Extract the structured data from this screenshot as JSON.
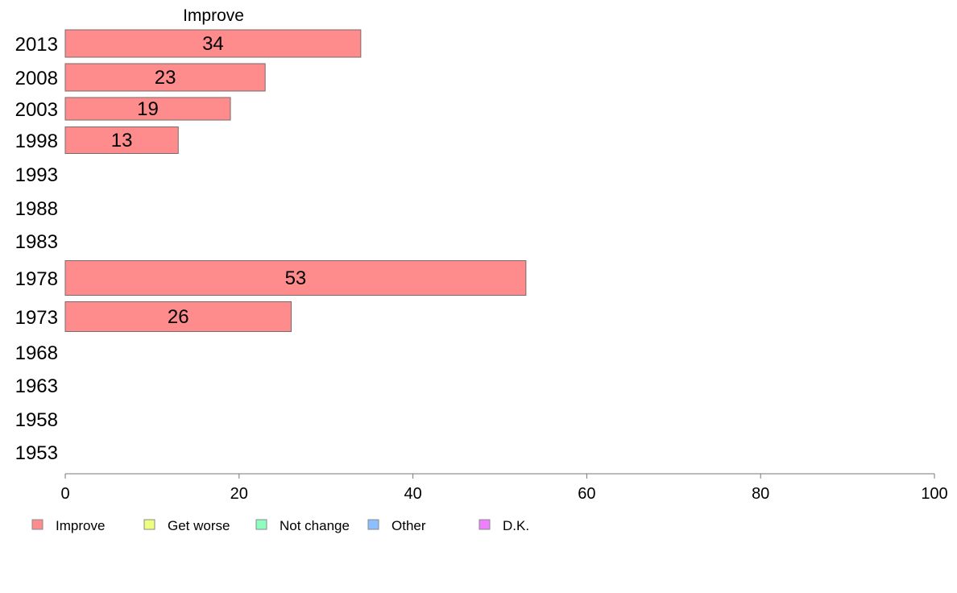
{
  "chart_data": {
    "type": "bar",
    "orientation": "horizontal",
    "title": "Improve",
    "xlabel": "",
    "ylabel": "",
    "xlim": [
      0,
      100
    ],
    "x_ticks": [
      0,
      20,
      40,
      60,
      80,
      100
    ],
    "grid": false,
    "categories": [
      "2013",
      "2008",
      "2003",
      "1998",
      "1993",
      "1988",
      "1983",
      "1978",
      "1973",
      "1968",
      "1963",
      "1958",
      "1953"
    ],
    "series": [
      {
        "name": "Improve",
        "color": "#ff8c8c",
        "values": [
          34,
          23,
          19,
          13,
          null,
          null,
          null,
          53,
          26,
          null,
          null,
          null,
          null
        ]
      }
    ],
    "legend": {
      "placement": "bottom-left",
      "items": [
        {
          "label": "Improve",
          "color": "#ff8c8c"
        },
        {
          "label": "Get worse",
          "color": "#eeff80"
        },
        {
          "label": "Not change",
          "color": "#8cffbf"
        },
        {
          "label": "Other",
          "color": "#8cbfff"
        },
        {
          "label": "D.K.",
          "color": "#ee80ff"
        }
      ]
    }
  }
}
